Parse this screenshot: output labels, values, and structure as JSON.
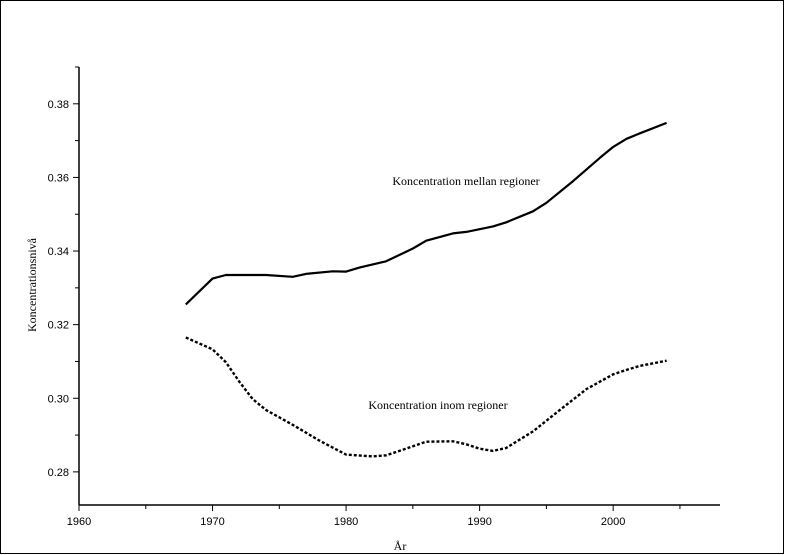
{
  "chart_data": {
    "type": "line",
    "xlabel": "År",
    "ylabel": "Koncentrationsnivå",
    "xlim": [
      1960,
      2008
    ],
    "ylim": [
      0.271,
      0.39
    ],
    "x_ticks": [
      1960,
      1970,
      1980,
      1990,
      2000
    ],
    "x_tick_labels": [
      "1960",
      "1970",
      "1980",
      "1990",
      "2000"
    ],
    "y_ticks": [
      0.28,
      0.3,
      0.32,
      0.34,
      0.36,
      0.38
    ],
    "y_tick_labels": [
      "0.28",
      "0.30",
      "0.32",
      "0.34",
      "0.36",
      "0.38"
    ],
    "grid": false,
    "annotations": [
      {
        "text": "Koncentration mellan regioner",
        "series": 0
      },
      {
        "text": "Koncentration inom regioner",
        "series": 1
      }
    ],
    "series": [
      {
        "style": "solid",
        "color": "#000000",
        "x": [
          1968,
          1970,
          1971,
          1972,
          1974,
          1976,
          1977,
          1979,
          1980,
          1981,
          1983,
          1985,
          1986,
          1988,
          1989,
          1991,
          1992,
          1994,
          1995,
          1997,
          1999,
          2000,
          2001,
          2002,
          2004
        ],
        "y": [
          0.3255,
          0.3325,
          0.3335,
          0.3335,
          0.3335,
          0.333,
          0.3338,
          0.3345,
          0.3344,
          0.3355,
          0.3372,
          0.3407,
          0.3428,
          0.3448,
          0.3452,
          0.3467,
          0.3478,
          0.3508,
          0.3531,
          0.359,
          0.3653,
          0.3683,
          0.3705,
          0.372,
          0.3748
        ]
      },
      {
        "style": "dotted",
        "color": "#000000",
        "x": [
          1968,
          1970,
          1971,
          1972,
          1973,
          1974,
          1976,
          1978,
          1980,
          1982,
          1983,
          1984,
          1986,
          1988,
          1989,
          1990,
          1991,
          1992,
          1994,
          1996,
          1998,
          2000,
          2001,
          2002,
          2004
        ],
        "y": [
          0.3165,
          0.3133,
          0.3098,
          0.3045,
          0.2998,
          0.2968,
          0.2928,
          0.2885,
          0.2847,
          0.2842,
          0.2845,
          0.2857,
          0.2882,
          0.2883,
          0.2875,
          0.2863,
          0.2857,
          0.2865,
          0.291,
          0.2968,
          0.3025,
          0.3065,
          0.3077,
          0.3088,
          0.3102
        ]
      }
    ]
  }
}
